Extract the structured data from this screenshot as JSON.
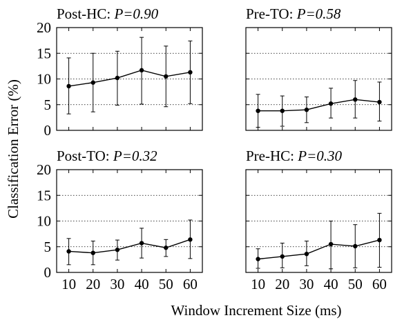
{
  "figure": {
    "ylabel": "Classification Error (%)",
    "xlabel": "Window Increment Size (ms)"
  },
  "chart_data": [
    {
      "type": "line",
      "title_prefix": "Post-HC: ",
      "title_pvalue": "P=0.90",
      "x": [
        10,
        20,
        30,
        40,
        50,
        60
      ],
      "y": [
        8.6,
        9.3,
        10.2,
        11.7,
        10.5,
        11.3
      ],
      "err_low": [
        3.2,
        3.6,
        4.9,
        5.1,
        4.6,
        5.2
      ],
      "err_high": [
        14.1,
        15.0,
        15.4,
        18.1,
        16.4,
        17.4
      ],
      "xticks": [
        "10",
        "20",
        "30",
        "40",
        "50",
        "60"
      ],
      "yticks": [
        "0",
        "5",
        "10",
        "15",
        "20"
      ],
      "xlim": [
        5,
        65
      ],
      "ylim": [
        0,
        20
      ],
      "grid": "horizontal-dotted",
      "show_xticklabels": false,
      "show_yticklabels": true
    },
    {
      "type": "line",
      "title_prefix": "Pre-TO: ",
      "title_pvalue": "P=0.58",
      "x": [
        10,
        20,
        30,
        40,
        50,
        60
      ],
      "y": [
        3.8,
        3.8,
        4.0,
        5.2,
        6.0,
        5.5
      ],
      "err_low": [
        0.6,
        0.8,
        1.5,
        2.4,
        2.4,
        1.8
      ],
      "err_high": [
        7.0,
        6.7,
        6.5,
        8.2,
        9.7,
        9.4
      ],
      "xticks": [
        "10",
        "20",
        "30",
        "40",
        "50",
        "60"
      ],
      "yticks": [
        "0",
        "5",
        "10",
        "15",
        "20"
      ],
      "xlim": [
        5,
        65
      ],
      "ylim": [
        0,
        20
      ],
      "grid": "horizontal-dotted",
      "show_xticklabels": false,
      "show_yticklabels": false
    },
    {
      "type": "line",
      "title_prefix": "Post-TO: ",
      "title_pvalue": "P=0.32",
      "x": [
        10,
        20,
        30,
        40,
        50,
        60
      ],
      "y": [
        4.1,
        3.8,
        4.4,
        5.7,
        4.8,
        6.4
      ],
      "err_low": [
        1.5,
        1.5,
        2.4,
        2.8,
        3.1,
        2.7
      ],
      "err_high": [
        6.6,
        6.1,
        6.3,
        8.6,
        6.4,
        10.2
      ],
      "xticks": [
        "10",
        "20",
        "30",
        "40",
        "50",
        "60"
      ],
      "yticks": [
        "0",
        "5",
        "10",
        "15",
        "20"
      ],
      "xlim": [
        5,
        65
      ],
      "ylim": [
        0,
        20
      ],
      "grid": "horizontal-dotted",
      "show_xticklabels": true,
      "show_yticklabels": true
    },
    {
      "type": "line",
      "title_prefix": "Pre-HC: ",
      "title_pvalue": "P=0.30",
      "x": [
        10,
        20,
        30,
        40,
        50,
        60
      ],
      "y": [
        2.6,
        3.1,
        3.6,
        5.5,
        5.1,
        6.3
      ],
      "err_low": [
        0.8,
        0.9,
        1.3,
        0.7,
        0.9,
        1.0
      ],
      "err_high": [
        4.6,
        5.7,
        6.1,
        10.0,
        9.3,
        11.5
      ],
      "xticks": [
        "10",
        "20",
        "30",
        "40",
        "50",
        "60"
      ],
      "yticks": [
        "0",
        "5",
        "10",
        "15",
        "20"
      ],
      "xlim": [
        5,
        65
      ],
      "ylim": [
        0,
        20
      ],
      "grid": "horizontal-dotted",
      "show_xticklabels": true,
      "show_yticklabels": false
    }
  ]
}
